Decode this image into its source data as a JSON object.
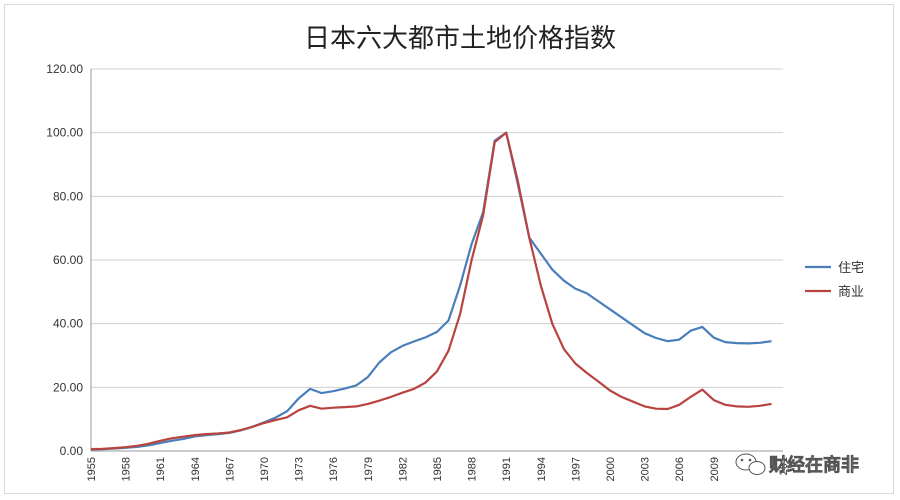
{
  "chart_data": {
    "type": "line",
    "title": "日本六大都市土地价格指数",
    "xlabel": "",
    "ylabel": "",
    "xlim": [
      1955,
      2015
    ],
    "ylim": [
      0,
      120
    ],
    "y_ticks": [
      "0.00",
      "20.00",
      "40.00",
      "60.00",
      "80.00",
      "100.00",
      "120.00"
    ],
    "x_ticks": [
      "1955",
      "1958",
      "1961",
      "1964",
      "1967",
      "1970",
      "1973",
      "1976",
      "1979",
      "1982",
      "1985",
      "1988",
      "1991",
      "1994",
      "1997",
      "2000",
      "2003",
      "2006",
      "2009",
      "20",
      "201"
    ],
    "grid": true,
    "legend_position": "right",
    "series": [
      {
        "name": "住宅",
        "color": "#4a7ebb",
        "x": [
          1955,
          1956,
          1957,
          1958,
          1959,
          1960,
          1961,
          1962,
          1963,
          1964,
          1965,
          1966,
          1967,
          1968,
          1969,
          1970,
          1971,
          1972,
          1973,
          1974,
          1975,
          1976,
          1977,
          1978,
          1979,
          1980,
          1981,
          1982,
          1983,
          1984,
          1985,
          1986,
          1987,
          1988,
          1989,
          1990,
          1991,
          1992,
          1993,
          1994,
          1995,
          1996,
          1997,
          1998,
          1999,
          2000,
          2001,
          2002,
          2003,
          2004,
          2005,
          2006,
          2007,
          2008,
          2009,
          2010,
          2011,
          2012,
          2013,
          2014
        ],
        "values": [
          0.5,
          0.6,
          0.8,
          1.0,
          1.3,
          1.8,
          2.5,
          3.2,
          3.8,
          4.6,
          5.0,
          5.3,
          5.7,
          6.5,
          7.6,
          9.0,
          10.5,
          12.5,
          16.5,
          19.5,
          18.2,
          18.8,
          19.6,
          20.6,
          23.2,
          27.8,
          31.0,
          33.0,
          34.4,
          35.7,
          37.4,
          41.0,
          52.0,
          65.0,
          75.0,
          97.5,
          100.0,
          84.0,
          67.0,
          62.0,
          57.0,
          53.5,
          51.0,
          49.5,
          47.0,
          44.5,
          42.0,
          39.5,
          37.0,
          35.5,
          34.5,
          35.0,
          37.8,
          39.0,
          35.6,
          34.2,
          33.9,
          33.8,
          34.0,
          34.5
        ]
      },
      {
        "name": "商业",
        "color": "#b8433f",
        "x": [
          1955,
          1956,
          1957,
          1958,
          1959,
          1960,
          1961,
          1962,
          1963,
          1964,
          1965,
          1966,
          1967,
          1968,
          1969,
          1970,
          1971,
          1972,
          1973,
          1974,
          1975,
          1976,
          1977,
          1978,
          1979,
          1980,
          1981,
          1982,
          1983,
          1984,
          1985,
          1986,
          1987,
          1988,
          1989,
          1990,
          1991,
          1992,
          1993,
          1994,
          1995,
          1996,
          1997,
          1998,
          1999,
          2000,
          2001,
          2002,
          2003,
          2004,
          2005,
          2006,
          2007,
          2008,
          2009,
          2010,
          2011,
          2012,
          2013,
          2014
        ],
        "values": [
          0.6,
          0.7,
          0.9,
          1.2,
          1.6,
          2.3,
          3.2,
          4.0,
          4.5,
          5.0,
          5.3,
          5.5,
          5.8,
          6.6,
          7.6,
          8.8,
          9.7,
          10.6,
          12.8,
          14.2,
          13.3,
          13.6,
          13.8,
          14.0,
          14.8,
          15.8,
          17.0,
          18.3,
          19.5,
          21.5,
          25.0,
          31.5,
          43.0,
          60.0,
          74.0,
          97.0,
          100.0,
          85.0,
          67.0,
          52.0,
          40.0,
          32.0,
          27.5,
          24.5,
          21.8,
          19.0,
          17.0,
          15.5,
          14.0,
          13.3,
          13.2,
          14.5,
          17.0,
          19.3,
          16.0,
          14.5,
          14.0,
          13.9,
          14.2,
          14.8
        ]
      }
    ]
  },
  "watermark": "财经在商非"
}
